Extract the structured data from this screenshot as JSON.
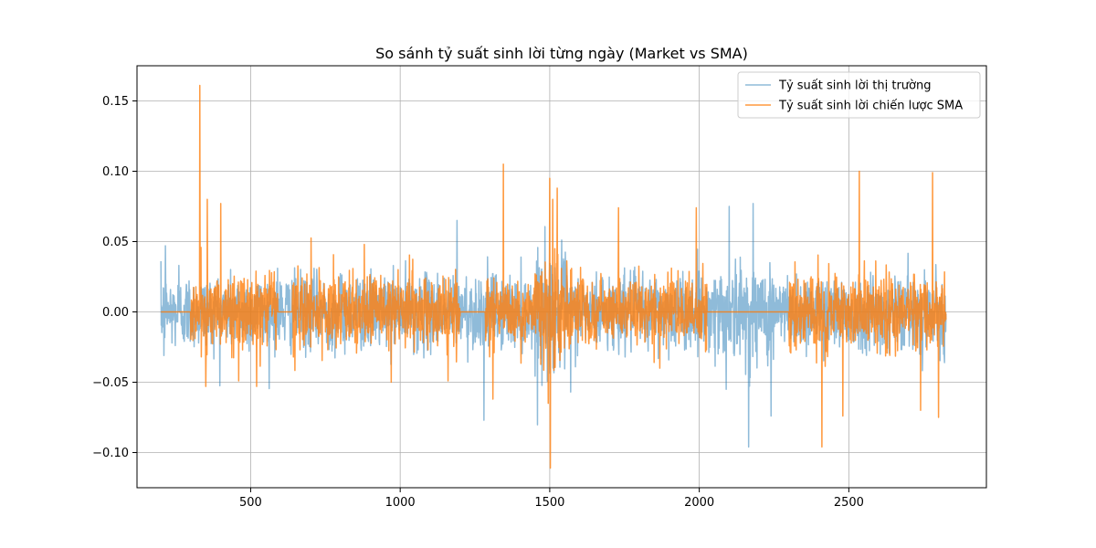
{
  "chart_data": {
    "type": "line",
    "title": "So sánh tỷ suất sinh lời từng ngày (Market vs SMA)",
    "xlabel": "",
    "ylabel": "",
    "xlim": [
      120,
      2960
    ],
    "ylim": [
      -0.125,
      0.175
    ],
    "x_ticks": [
      500,
      1000,
      1500,
      2000,
      2500
    ],
    "x_tick_labels": [
      "500",
      "1000",
      "1500",
      "2000",
      "2500"
    ],
    "y_ticks": [
      -0.1,
      -0.05,
      0.0,
      0.05,
      0.1,
      0.15
    ],
    "y_tick_labels": [
      "−0.10",
      "−0.05",
      "0.00",
      "0.05",
      "0.10",
      "0.15"
    ],
    "grid": true,
    "legend_position": "upper right",
    "series": [
      {
        "name": "Tỷ suất sinh lời thị trường",
        "color": "#1f77b4",
        "opacity": 0.5,
        "x_range": [
          200,
          2825
        ],
        "typical_amplitude": 0.013,
        "spikes": [
          {
            "x": 210,
            "y": -0.031
          },
          {
            "x": 215,
            "y": 0.047
          },
          {
            "x": 260,
            "y": 0.033
          },
          {
            "x": 590,
            "y": 0.031
          },
          {
            "x": 1190,
            "y": 0.065
          },
          {
            "x": 1280,
            "y": -0.077
          },
          {
            "x": 1570,
            "y": -0.057
          },
          {
            "x": 2090,
            "y": -0.055
          },
          {
            "x": 2100,
            "y": 0.075
          },
          {
            "x": 2165,
            "y": -0.096
          },
          {
            "x": 2180,
            "y": 0.077
          },
          {
            "x": 2240,
            "y": -0.074
          },
          {
            "x": 2820,
            "y": -0.036
          }
        ]
      },
      {
        "name": "Tỷ suất sinh lời chiến lược SMA",
        "color": "#ff7f0e",
        "opacity": 0.8,
        "active_segments": [
          [
            300,
            590
          ],
          [
            640,
            1200
          ],
          [
            1285,
            2025
          ],
          [
            2300,
            2825
          ]
        ],
        "typical_amplitude": 0.013,
        "spikes": [
          {
            "x": 330,
            "y": 0.161
          },
          {
            "x": 335,
            "y": -0.032
          },
          {
            "x": 350,
            "y": -0.053
          },
          {
            "x": 355,
            "y": 0.08
          },
          {
            "x": 400,
            "y": 0.077
          },
          {
            "x": 460,
            "y": -0.049
          },
          {
            "x": 520,
            "y": -0.053
          },
          {
            "x": 880,
            "y": 0.048
          },
          {
            "x": 970,
            "y": -0.05
          },
          {
            "x": 1160,
            "y": -0.049
          },
          {
            "x": 1310,
            "y": -0.062
          },
          {
            "x": 1345,
            "y": 0.105
          },
          {
            "x": 1495,
            "y": -0.065
          },
          {
            "x": 1500,
            "y": 0.095
          },
          {
            "x": 1502,
            "y": -0.111
          },
          {
            "x": 1510,
            "y": 0.08
          },
          {
            "x": 1525,
            "y": 0.088
          },
          {
            "x": 1730,
            "y": 0.074
          },
          {
            "x": 1990,
            "y": 0.074
          },
          {
            "x": 2410,
            "y": -0.096
          },
          {
            "x": 2480,
            "y": -0.074
          },
          {
            "x": 2535,
            "y": 0.1
          },
          {
            "x": 2740,
            "y": -0.07
          },
          {
            "x": 2780,
            "y": 0.099
          },
          {
            "x": 2800,
            "y": -0.075
          }
        ]
      }
    ]
  }
}
